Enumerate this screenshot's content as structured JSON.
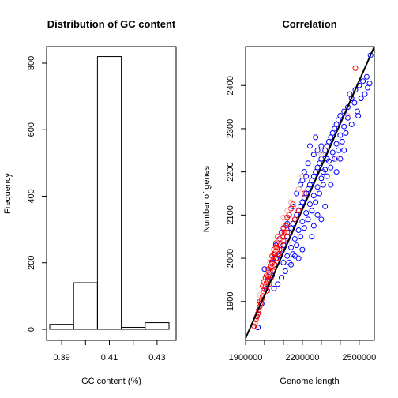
{
  "chart_data": [
    {
      "type": "bar",
      "title": "Distribution of GC content",
      "xlabel": "GC content (%)",
      "ylabel": "Frequency",
      "bin_edges": [
        0.385,
        0.395,
        0.405,
        0.415,
        0.425,
        0.435
      ],
      "values": [
        15,
        140,
        820,
        6,
        20
      ],
      "xticks": [
        "0.39",
        "0.41",
        "0.43"
      ],
      "yticks": [
        "0",
        "200",
        "400",
        "600",
        "800"
      ],
      "xlim": [
        0.385,
        0.435
      ],
      "ylim": [
        0,
        850
      ],
      "grid": false,
      "legend": "none"
    },
    {
      "type": "scatter",
      "title": "Correlation",
      "xlabel": "Genome length",
      "ylabel": "Number of genes",
      "xticks": [
        "1900000",
        "2200000",
        "2500000"
      ],
      "yticks": [
        "1900",
        "2000",
        "2100",
        "2200",
        "2300",
        "2400"
      ],
      "xlim": [
        1900000,
        2580000
      ],
      "ylim": [
        1810,
        2490
      ],
      "grid": false,
      "legend": "none",
      "regression_line": {
        "x": [
          1900000,
          2580000
        ],
        "y": [
          1815,
          2490
        ]
      },
      "series": [
        {
          "color": "#0000ff",
          "points": [
            [
              2030000,
              1968
            ],
            [
              2050000,
              1985
            ],
            [
              2060000,
              1999
            ],
            [
              2070000,
              2010
            ],
            [
              2080000,
              2005
            ],
            [
              2090000,
              2020
            ],
            [
              2100000,
              2030
            ],
            [
              2110000,
              2040
            ],
            [
              2120000,
              2050
            ],
            [
              2130000,
              2060
            ],
            [
              2140000,
              2070
            ],
            [
              2150000,
              2080
            ],
            [
              2160000,
              2090
            ],
            [
              2170000,
              2100
            ],
            [
              2180000,
              2110
            ],
            [
              2190000,
              2120
            ],
            [
              2200000,
              2130
            ],
            [
              2210000,
              2140
            ],
            [
              2220000,
              2150
            ],
            [
              2230000,
              2160
            ],
            [
              2240000,
              2170
            ],
            [
              2250000,
              2180
            ],
            [
              2260000,
              2190
            ],
            [
              2270000,
              2200
            ],
            [
              2280000,
              2210
            ],
            [
              2290000,
              2220
            ],
            [
              2300000,
              2230
            ],
            [
              2310000,
              2240
            ],
            [
              2320000,
              2250
            ],
            [
              2330000,
              2260
            ],
            [
              2340000,
              2270
            ],
            [
              2350000,
              2280
            ],
            [
              2360000,
              2290
            ],
            [
              2370000,
              2300
            ],
            [
              2380000,
              2310
            ],
            [
              2390000,
              2320
            ],
            [
              2400000,
              2330
            ],
            [
              2420000,
              2340
            ],
            [
              2440000,
              2350
            ],
            [
              2460000,
              2370
            ],
            [
              2480000,
              2390
            ],
            [
              2500000,
              2400
            ],
            [
              2520000,
              2410
            ],
            [
              2540000,
              2420
            ],
            [
              2560000,
              2470
            ],
            [
              2555000,
              2405
            ],
            [
              2545000,
              2395
            ],
            [
              2495000,
              2330
            ],
            [
              2475000,
              2360
            ],
            [
              2450000,
              2380
            ],
            [
              2430000,
              2290
            ],
            [
              2410000,
              2270
            ],
            [
              2390000,
              2250
            ],
            [
              2370000,
              2230
            ],
            [
              2350000,
              2210
            ],
            [
              2330000,
              2190
            ],
            [
              2310000,
              2170
            ],
            [
              2290000,
              2150
            ],
            [
              2270000,
              2130
            ],
            [
              2250000,
              2110
            ],
            [
              2230000,
              2090
            ],
            [
              2210000,
              2070
            ],
            [
              2190000,
              2050
            ],
            [
              2170000,
              2030
            ],
            [
              2150000,
              2010
            ],
            [
              2130000,
              1990
            ],
            [
              2110000,
              1970
            ],
            [
              2090000,
              1955
            ],
            [
              2070000,
              1940
            ],
            [
              2050000,
              1930
            ],
            [
              2000000,
              1975
            ],
            [
              1985000,
              1895
            ],
            [
              1970000,
              1880
            ],
            [
              1960000,
              1865
            ],
            [
              1965000,
              1840
            ],
            [
              2010000,
              1930
            ],
            [
              2020000,
              1950
            ],
            [
              2040000,
              1960
            ],
            [
              2100000,
              1990
            ],
            [
              2120000,
              2005
            ],
            [
              2140000,
              2025
            ],
            [
              2160000,
              2045
            ],
            [
              2180000,
              2065
            ],
            [
              2200000,
              2085
            ],
            [
              2220000,
              2105
            ],
            [
              2240000,
              2125
            ],
            [
              2260000,
              2145
            ],
            [
              2280000,
              2165
            ],
            [
              2300000,
              2185
            ],
            [
              2320000,
              2205
            ],
            [
              2340000,
              2225
            ],
            [
              2360000,
              2245
            ],
            [
              2380000,
              2265
            ],
            [
              2400000,
              2285
            ],
            [
              2420000,
              2305
            ],
            [
              2440000,
              2325
            ],
            [
              2300000,
              2090
            ],
            [
              2320000,
              2120
            ],
            [
              2250000,
              2050
            ],
            [
              2150000,
              2120
            ],
            [
              2170000,
              2150
            ],
            [
              2190000,
              2170
            ],
            [
              2210000,
              2200
            ],
            [
              2230000,
              2220
            ],
            [
              2260000,
              2240
            ],
            [
              2180000,
              2000
            ],
            [
              2200000,
              2020
            ],
            [
              2120000,
              2080
            ],
            [
              2090000,
              2060
            ],
            [
              2260000,
              2075
            ],
            [
              2280000,
              2100
            ],
            [
              2350000,
              2170
            ],
            [
              2380000,
              2200
            ],
            [
              2400000,
              2230
            ],
            [
              2420000,
              2250
            ],
            [
              2140000,
              1985
            ],
            [
              2160000,
              2005
            ],
            [
              2060000,
              2030
            ],
            [
              2080000,
              2045
            ],
            [
              2130000,
              2100
            ],
            [
              2240000,
              2260
            ],
            [
              2270000,
              2280
            ],
            [
              2460000,
              2310
            ],
            [
              2490000,
              2340
            ],
            [
              2510000,
              2370
            ],
            [
              2530000,
              2380
            ],
            [
              2200000,
              2180
            ],
            [
              2220000,
              2190
            ],
            [
              2310000,
              2200
            ],
            [
              2330000,
              2230
            ],
            [
              2050000,
              2010
            ],
            [
              2040000,
              1990
            ],
            [
              2100000,
              2070
            ],
            [
              2280000,
              2250
            ],
            [
              2300000,
              2260
            ]
          ]
        },
        {
          "color": "#ff0000",
          "points": [
            [
              1945000,
              1843
            ],
            [
              1950000,
              1850
            ],
            [
              1955000,
              1858
            ],
            [
              1960000,
              1865
            ],
            [
              1965000,
              1872
            ],
            [
              1970000,
              1880
            ],
            [
              1975000,
              1888
            ],
            [
              1980000,
              1896
            ],
            [
              1985000,
              1905
            ],
            [
              1990000,
              1913
            ],
            [
              1995000,
              1920
            ],
            [
              2000000,
              1928
            ],
            [
              2005000,
              1935
            ],
            [
              2010000,
              1943
            ],
            [
              2015000,
              1950
            ],
            [
              2020000,
              1957
            ],
            [
              2025000,
              1965
            ],
            [
              2030000,
              1972
            ],
            [
              2035000,
              1980
            ],
            [
              2040000,
              1987
            ],
            [
              2045000,
              1995
            ],
            [
              2050000,
              2002
            ],
            [
              2055000,
              2010
            ],
            [
              2060000,
              2017
            ],
            [
              2065000,
              2025
            ],
            [
              2070000,
              2032
            ],
            [
              2080000,
              2045
            ],
            [
              2090000,
              2058
            ],
            [
              2100000,
              2070
            ],
            [
              2110000,
              2085
            ],
            [
              2120000,
              2095
            ],
            [
              2140000,
              2115
            ],
            [
              2000000,
              1945
            ],
            [
              2010000,
              1960
            ],
            [
              2020000,
              1975
            ],
            [
              2030000,
              1990
            ],
            [
              2040000,
              2005
            ],
            [
              2050000,
              2020
            ],
            [
              2060000,
              2035
            ],
            [
              2070000,
              2050
            ],
            [
              2015000,
              1925
            ],
            [
              2025000,
              1940
            ],
            [
              2035000,
              1955
            ],
            [
              2045000,
              1970
            ],
            [
              2055000,
              1985
            ],
            [
              1990000,
              1935
            ],
            [
              1995000,
              1945
            ],
            [
              2480000,
              2440
            ],
            [
              2210000,
              2150
            ],
            [
              2180000,
              2110
            ],
            [
              2160000,
              2090
            ],
            [
              2120000,
              2060
            ],
            [
              2100000,
              2040
            ],
            [
              2080000,
              2020
            ],
            [
              1975000,
              1900
            ],
            [
              2005000,
              1955
            ],
            [
              2065000,
              2000
            ],
            [
              2075000,
              2010
            ],
            [
              2085000,
              2030
            ],
            [
              2095000,
              2050
            ],
            [
              2105000,
              2060
            ],
            [
              2115000,
              2075
            ],
            [
              2130000,
              2100
            ],
            [
              2150000,
              2125
            ]
          ]
        },
        {
          "color": "#f0b0a8",
          "points": [
            [
              1975000,
              1915
            ],
            [
              2000000,
              1945
            ],
            [
              2020000,
              1965
            ],
            [
              2040000,
              1985
            ],
            [
              2060000,
              2020
            ],
            [
              2080000,
              2040
            ],
            [
              2100000,
              2095
            ],
            [
              2120000,
              2110
            ],
            [
              2140000,
              2130
            ],
            [
              2180000,
              2160
            ],
            [
              2200000,
              2190
            ],
            [
              2300000,
              2240
            ],
            [
              2380000,
              2230
            ],
            [
              2440000,
              2330
            ],
            [
              2150000,
              2060
            ],
            [
              2130000,
              2040
            ]
          ]
        }
      ]
    }
  ]
}
